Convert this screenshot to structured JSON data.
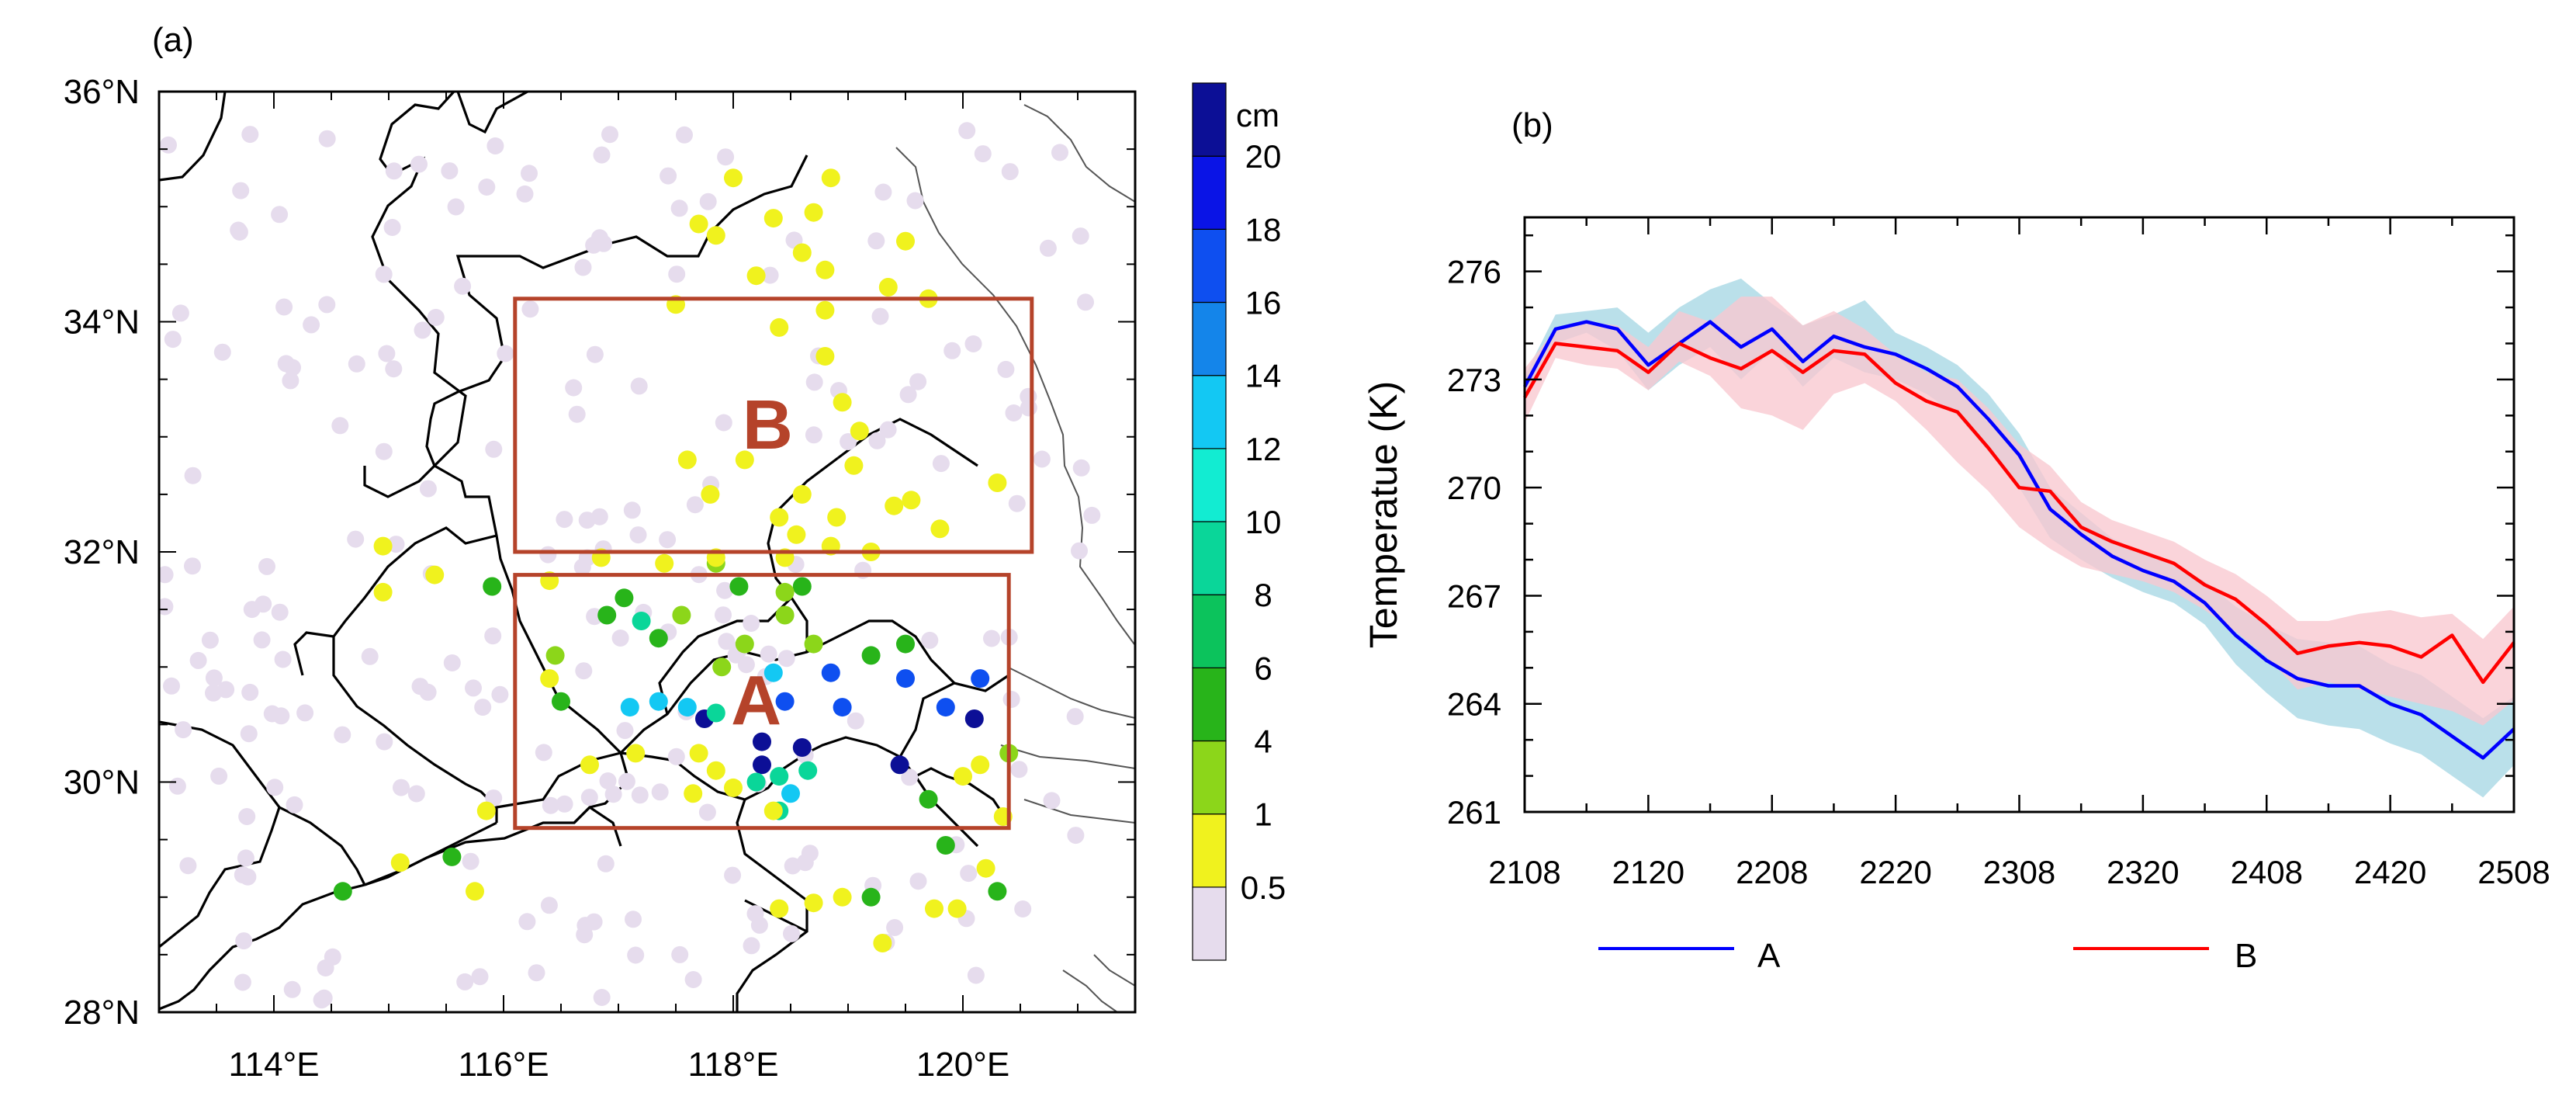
{
  "panel_labels": {
    "a": "(a)",
    "b": "(b)"
  },
  "colorbar": {
    "unit": "cm",
    "tick_labels": [
      "0.5",
      "1",
      "4",
      "6",
      "8",
      "10",
      "12",
      "14",
      "16",
      "18",
      "20"
    ],
    "colors": [
      "#e6dced",
      "#f0f21e",
      "#8cd61a",
      "#28b41a",
      "#0cc35c",
      "#0ad699",
      "#12ecd2",
      "#13c8f3",
      "#1485ea",
      "#0e4ff0",
      "#0a14e6",
      "#0c0f96"
    ]
  },
  "boxes": [
    {
      "label": "B",
      "color": "#b5432a"
    },
    {
      "label": "A",
      "color": "#b5432a"
    }
  ],
  "chart_data": [
    {
      "type": "scatter",
      "title": "",
      "x_tick_labels": [
        "114°E",
        "116°E",
        "118°E",
        "120°E"
      ],
      "y_tick_labels": [
        "28°N",
        "30°N",
        "32°N",
        "34°N",
        "36°N"
      ],
      "xlim": [
        113.0,
        121.5
      ],
      "ylim": [
        28,
        36
      ],
      "boxes": [
        {
          "label": "B",
          "lon": [
            116.1,
            120.6
          ],
          "lat": [
            32.0,
            34.2
          ]
        },
        {
          "label": "A",
          "lon": [
            116.1,
            120.4
          ],
          "lat": [
            29.6,
            31.8
          ]
        }
      ],
      "stations_snow_cm": [
        [
          117.75,
          30.55,
          20
        ],
        [
          118.25,
          30.35,
          20
        ],
        [
          118.25,
          30.15,
          20
        ],
        [
          118.6,
          30.3,
          20
        ],
        [
          119.45,
          30.15,
          20
        ],
        [
          120.1,
          30.55,
          20
        ],
        [
          118.85,
          30.95,
          16
        ],
        [
          119.5,
          30.9,
          16
        ],
        [
          118.45,
          30.7,
          16
        ],
        [
          118.95,
          30.65,
          16
        ],
        [
          119.85,
          30.65,
          16
        ],
        [
          120.15,
          30.9,
          16
        ],
        [
          117.35,
          30.7,
          12
        ],
        [
          117.1,
          30.65,
          12
        ],
        [
          117.6,
          30.65,
          12
        ],
        [
          118.35,
          30.95,
          12
        ],
        [
          118.5,
          29.9,
          12
        ],
        [
          117.2,
          31.4,
          8
        ],
        [
          118.2,
          30.0,
          8
        ],
        [
          117.85,
          30.6,
          8
        ],
        [
          118.4,
          30.05,
          8
        ],
        [
          118.65,
          30.1,
          8
        ],
        [
          118.4,
          29.75,
          8
        ],
        [
          116.5,
          30.7,
          4
        ],
        [
          115.9,
          31.7,
          4
        ],
        [
          116.9,
          31.45,
          4
        ],
        [
          117.05,
          31.6,
          4
        ],
        [
          117.35,
          31.25,
          4
        ],
        [
          118.05,
          31.7,
          4
        ],
        [
          118.6,
          31.7,
          4
        ],
        [
          119.2,
          31.1,
          4
        ],
        [
          119.5,
          31.2,
          4
        ],
        [
          119.7,
          29.85,
          4
        ],
        [
          119.85,
          29.45,
          4
        ],
        [
          119.2,
          29.0,
          4
        ],
        [
          120.3,
          29.05,
          4
        ],
        [
          114.6,
          29.05,
          4
        ],
        [
          115.55,
          29.35,
          4
        ],
        [
          117.85,
          31.9,
          1
        ],
        [
          117.9,
          31.0,
          1
        ],
        [
          118.45,
          31.45,
          1
        ],
        [
          118.1,
          31.2,
          1
        ],
        [
          117.55,
          31.45,
          1
        ],
        [
          116.45,
          31.1,
          1
        ],
        [
          118.7,
          31.2,
          1
        ],
        [
          118.45,
          31.65,
          1
        ],
        [
          120.4,
          30.25,
          1
        ],
        [
          118.0,
          35.25,
          0.5
        ],
        [
          118.85,
          35.25,
          0.5
        ],
        [
          118.35,
          34.9,
          0.5
        ],
        [
          118.6,
          34.6,
          0.5
        ],
        [
          118.8,
          34.45,
          0.5
        ],
        [
          117.7,
          34.85,
          0.5
        ],
        [
          117.85,
          34.75,
          0.5
        ],
        [
          118.2,
          34.4,
          0.5
        ],
        [
          118.7,
          34.95,
          0.5
        ],
        [
          119.35,
          34.3,
          0.5
        ],
        [
          119.5,
          34.7,
          0.5
        ],
        [
          119.7,
          34.2,
          0.5
        ],
        [
          118.8,
          34.1,
          0.5
        ],
        [
          117.5,
          34.15,
          0.5
        ],
        [
          118.4,
          33.95,
          0.5
        ],
        [
          118.8,
          33.7,
          0.5
        ],
        [
          118.95,
          33.3,
          0.5
        ],
        [
          119.1,
          33.05,
          0.5
        ],
        [
          118.1,
          32.8,
          0.5
        ],
        [
          117.8,
          32.5,
          0.5
        ],
        [
          117.6,
          32.8,
          0.5
        ],
        [
          119.05,
          32.75,
          0.5
        ],
        [
          118.6,
          32.5,
          0.5
        ],
        [
          118.4,
          32.3,
          0.5
        ],
        [
          118.55,
          32.15,
          0.5
        ],
        [
          118.9,
          32.3,
          0.5
        ],
        [
          119.4,
          32.4,
          0.5
        ],
        [
          119.55,
          32.45,
          0.5
        ],
        [
          119.2,
          32.0,
          0.5
        ],
        [
          119.8,
          32.2,
          0.5
        ],
        [
          120.3,
          32.6,
          0.5
        ],
        [
          118.85,
          32.05,
          0.5
        ],
        [
          118.45,
          31.95,
          0.5
        ],
        [
          117.85,
          31.95,
          0.5
        ],
        [
          117.4,
          31.9,
          0.5
        ],
        [
          116.85,
          31.95,
          0.5
        ],
        [
          116.4,
          31.75,
          0.5
        ],
        [
          115.4,
          31.8,
          0.5
        ],
        [
          114.95,
          31.65,
          0.5
        ],
        [
          114.95,
          32.05,
          0.5
        ],
        [
          116.4,
          30.9,
          0.5
        ],
        [
          116.75,
          30.15,
          0.5
        ],
        [
          117.15,
          30.25,
          0.5
        ],
        [
          117.7,
          30.25,
          0.5
        ],
        [
          117.65,
          29.9,
          0.5
        ],
        [
          118.0,
          29.95,
          0.5
        ],
        [
          117.85,
          30.1,
          0.5
        ],
        [
          118.35,
          29.75,
          0.5
        ],
        [
          118.7,
          28.95,
          0.5
        ],
        [
          118.4,
          28.9,
          0.5
        ],
        [
          118.95,
          29.0,
          0.5
        ],
        [
          119.3,
          28.6,
          0.5
        ],
        [
          119.75,
          28.9,
          0.5
        ],
        [
          119.95,
          28.9,
          0.5
        ],
        [
          120.2,
          29.25,
          0.5
        ],
        [
          120.35,
          29.7,
          0.5
        ],
        [
          120.0,
          30.05,
          0.5
        ],
        [
          120.15,
          30.15,
          0.5
        ],
        [
          115.85,
          29.75,
          0.5
        ],
        [
          115.1,
          29.3,
          0.5
        ],
        [
          115.75,
          29.05,
          0.5
        ]
      ]
    },
    {
      "type": "line",
      "title": "",
      "xlabel": "",
      "ylabel": "Temperatue (K)",
      "x_ticks": [
        "2108",
        "2120",
        "2208",
        "2220",
        "2308",
        "2320",
        "2408",
        "2420",
        "2508"
      ],
      "y_ticks": [
        261,
        264,
        267,
        270,
        273,
        276
      ],
      "ylim": [
        261,
        277.5
      ],
      "legend_placement": "bottom",
      "series": [
        {
          "name": "A",
          "color": "#0000ff",
          "band_color": "#a7d7e4",
          "values": [
            272.8,
            274.4,
            274.6,
            274.4,
            273.4,
            274.0,
            274.6,
            273.9,
            274.4,
            273.5,
            274.2,
            273.9,
            273.7,
            273.3,
            272.8,
            271.9,
            270.9,
            269.4,
            268.7,
            268.1,
            267.7,
            267.4,
            266.8,
            265.9,
            265.2,
            264.7,
            264.5,
            264.5,
            264.0,
            263.7,
            263.1,
            262.5,
            263.3
          ],
          "upper": [
            273.1,
            274.8,
            274.9,
            275.0,
            274.3,
            275.0,
            275.5,
            275.8,
            275.1,
            274.5,
            274.8,
            275.2,
            274.3,
            273.9,
            273.4,
            272.6,
            271.5,
            270.0,
            269.3,
            268.6,
            268.2,
            267.9,
            267.4,
            266.7,
            266.2,
            265.8,
            265.7,
            265.6,
            265.1,
            264.8,
            264.2,
            263.6,
            264.2
          ],
          "lower": [
            272.5,
            274.0,
            274.3,
            273.8,
            272.7,
            273.4,
            273.9,
            273.0,
            273.8,
            272.8,
            273.6,
            273.2,
            273.0,
            272.6,
            272.0,
            271.0,
            270.0,
            268.6,
            268.0,
            267.5,
            267.1,
            266.8,
            266.2,
            265.1,
            264.3,
            263.6,
            263.4,
            263.3,
            262.9,
            262.6,
            262.0,
            261.4,
            262.3
          ]
        },
        {
          "name": "B",
          "color": "#ff0000",
          "band_color": "#f9c8d0",
          "values": [
            272.5,
            274.0,
            273.9,
            273.8,
            273.2,
            274.0,
            273.6,
            273.3,
            273.8,
            273.2,
            273.8,
            273.7,
            272.9,
            272.4,
            272.1,
            271.1,
            270.0,
            269.9,
            268.9,
            268.5,
            268.2,
            267.9,
            267.3,
            266.9,
            266.2,
            265.4,
            265.6,
            265.7,
            265.6,
            265.3,
            265.9,
            264.6,
            265.7
          ],
          "upper": [
            273.3,
            274.4,
            274.6,
            274.5,
            273.9,
            274.9,
            274.6,
            275.3,
            275.3,
            274.5,
            274.9,
            274.4,
            273.7,
            273.2,
            273.0,
            272.2,
            271.2,
            270.6,
            269.6,
            269.1,
            268.8,
            268.5,
            268.0,
            267.6,
            267.0,
            266.3,
            266.3,
            266.5,
            266.6,
            266.4,
            266.5,
            265.8,
            266.7
          ],
          "lower": [
            271.8,
            273.6,
            273.4,
            273.3,
            272.7,
            273.5,
            273.1,
            272.2,
            272.0,
            271.6,
            272.6,
            272.9,
            272.4,
            271.6,
            270.7,
            269.9,
            268.9,
            268.3,
            267.8,
            267.6,
            267.4,
            267.1,
            266.6,
            266.0,
            265.3,
            264.4,
            264.6,
            264.4,
            264.2,
            264.0,
            263.8,
            263.4,
            264.1
          ]
        }
      ]
    }
  ]
}
